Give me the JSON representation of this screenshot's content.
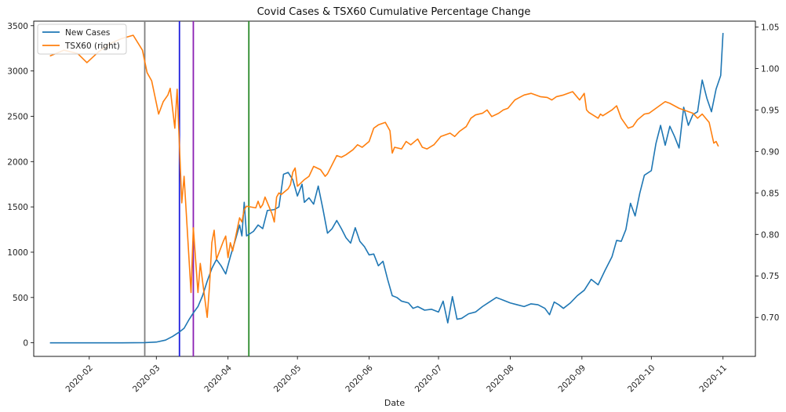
{
  "chart_data": {
    "type": "line",
    "title": "Covid Cases & TSX60 Cumulative Percentage Change",
    "xlabel": "Date",
    "ylabel": "",
    "y2label": "",
    "legend_position": "top-left",
    "grid": false,
    "x_ticks": [
      "2020-02",
      "2020-03",
      "2020-04",
      "2020-05",
      "2020-06",
      "2020-07",
      "2020-08",
      "2020-09",
      "2020-10",
      "2020-11"
    ],
    "x_tick_dates": [
      "2020-02-01",
      "2020-03-01",
      "2020-04-01",
      "2020-05-01",
      "2020-06-01",
      "2020-07-01",
      "2020-08-01",
      "2020-09-01",
      "2020-10-01",
      "2020-11-01"
    ],
    "xlim": [
      "2020-01-08",
      "2020-11-15"
    ],
    "ylim": [
      -150,
      3550
    ],
    "y_ticks": [
      "0",
      "500",
      "1000",
      "1500",
      "2000",
      "2500",
      "3000",
      "3500"
    ],
    "y_tick_values": [
      0,
      500,
      1000,
      1500,
      2000,
      2500,
      3000,
      3500
    ],
    "y2lim": [
      0.653,
      1.057
    ],
    "y2_ticks": [
      "0.70",
      "0.75",
      "0.80",
      "0.85",
      "0.90",
      "0.95",
      "1.00",
      "1.05"
    ],
    "y2_tick_values": [
      0.7,
      0.75,
      0.8,
      0.85,
      0.9,
      0.95,
      1.0,
      1.05
    ],
    "vlines": [
      {
        "date": "2020-02-25",
        "color": "#808080"
      },
      {
        "date": "2020-03-11",
        "color": "#1f1fdd"
      },
      {
        "date": "2020-03-17",
        "color": "#8b1fb4"
      },
      {
        "date": "2020-04-10",
        "color": "#2a8a2a"
      }
    ],
    "series": [
      {
        "name": "New Cases",
        "axis": "left",
        "color": "#1f77b4",
        "points": [
          [
            "2020-01-15",
            0
          ],
          [
            "2020-02-01",
            0
          ],
          [
            "2020-02-15",
            0
          ],
          [
            "2020-02-25",
            2
          ],
          [
            "2020-03-01",
            8
          ],
          [
            "2020-03-05",
            30
          ],
          [
            "2020-03-08",
            70
          ],
          [
            "2020-03-11",
            120
          ],
          [
            "2020-03-13",
            160
          ],
          [
            "2020-03-15",
            250
          ],
          [
            "2020-03-17",
            330
          ],
          [
            "2020-03-19",
            400
          ],
          [
            "2020-03-21",
            520
          ],
          [
            "2020-03-23",
            680
          ],
          [
            "2020-03-25",
            820
          ],
          [
            "2020-03-27",
            920
          ],
          [
            "2020-03-29",
            850
          ],
          [
            "2020-03-31",
            760
          ],
          [
            "2020-04-02",
            950
          ],
          [
            "2020-04-04",
            1120
          ],
          [
            "2020-04-06",
            1300
          ],
          [
            "2020-04-07",
            1180
          ],
          [
            "2020-04-08",
            1550
          ],
          [
            "2020-04-09",
            1180
          ],
          [
            "2020-04-12",
            1230
          ],
          [
            "2020-04-14",
            1300
          ],
          [
            "2020-04-16",
            1260
          ],
          [
            "2020-04-18",
            1460
          ],
          [
            "2020-04-21",
            1470
          ],
          [
            "2020-04-23",
            1500
          ],
          [
            "2020-04-25",
            1860
          ],
          [
            "2020-04-27",
            1880
          ],
          [
            "2020-04-29",
            1800
          ],
          [
            "2020-05-01",
            1620
          ],
          [
            "2020-05-03",
            1750
          ],
          [
            "2020-05-04",
            1550
          ],
          [
            "2020-05-06",
            1600
          ],
          [
            "2020-05-08",
            1530
          ],
          [
            "2020-05-10",
            1730
          ],
          [
            "2020-05-12",
            1480
          ],
          [
            "2020-05-14",
            1210
          ],
          [
            "2020-05-16",
            1260
          ],
          [
            "2020-05-18",
            1350
          ],
          [
            "2020-05-20",
            1260
          ],
          [
            "2020-05-22",
            1160
          ],
          [
            "2020-05-24",
            1100
          ],
          [
            "2020-05-26",
            1270
          ],
          [
            "2020-05-28",
            1120
          ],
          [
            "2020-05-30",
            1060
          ],
          [
            "2020-06-01",
            970
          ],
          [
            "2020-06-03",
            980
          ],
          [
            "2020-06-05",
            850
          ],
          [
            "2020-06-07",
            900
          ],
          [
            "2020-06-09",
            700
          ],
          [
            "2020-06-11",
            520
          ],
          [
            "2020-06-13",
            500
          ],
          [
            "2020-06-15",
            460
          ],
          [
            "2020-06-18",
            440
          ],
          [
            "2020-06-20",
            380
          ],
          [
            "2020-06-22",
            400
          ],
          [
            "2020-06-25",
            360
          ],
          [
            "2020-06-28",
            370
          ],
          [
            "2020-07-01",
            340
          ],
          [
            "2020-07-03",
            460
          ],
          [
            "2020-07-05",
            220
          ],
          [
            "2020-07-07",
            510
          ],
          [
            "2020-07-09",
            260
          ],
          [
            "2020-07-11",
            270
          ],
          [
            "2020-07-14",
            320
          ],
          [
            "2020-07-17",
            340
          ],
          [
            "2020-07-20",
            400
          ],
          [
            "2020-07-23",
            450
          ],
          [
            "2020-07-26",
            500
          ],
          [
            "2020-07-29",
            470
          ],
          [
            "2020-08-01",
            440
          ],
          [
            "2020-08-04",
            420
          ],
          [
            "2020-08-07",
            400
          ],
          [
            "2020-08-10",
            430
          ],
          [
            "2020-08-13",
            420
          ],
          [
            "2020-08-16",
            380
          ],
          [
            "2020-08-18",
            310
          ],
          [
            "2020-08-20",
            450
          ],
          [
            "2020-08-22",
            420
          ],
          [
            "2020-08-24",
            380
          ],
          [
            "2020-08-27",
            440
          ],
          [
            "2020-08-30",
            520
          ],
          [
            "2020-09-02",
            580
          ],
          [
            "2020-09-05",
            700
          ],
          [
            "2020-09-08",
            640
          ],
          [
            "2020-09-11",
            800
          ],
          [
            "2020-09-14",
            950
          ],
          [
            "2020-09-16",
            1130
          ],
          [
            "2020-09-18",
            1120
          ],
          [
            "2020-09-20",
            1250
          ],
          [
            "2020-09-22",
            1540
          ],
          [
            "2020-09-24",
            1400
          ],
          [
            "2020-09-26",
            1650
          ],
          [
            "2020-09-28",
            1850
          ],
          [
            "2020-10-01",
            1900
          ],
          [
            "2020-10-03",
            2200
          ],
          [
            "2020-10-05",
            2400
          ],
          [
            "2020-10-07",
            2180
          ],
          [
            "2020-10-09",
            2390
          ],
          [
            "2020-10-11",
            2280
          ],
          [
            "2020-10-13",
            2150
          ],
          [
            "2020-10-15",
            2600
          ],
          [
            "2020-10-17",
            2400
          ],
          [
            "2020-10-19",
            2520
          ],
          [
            "2020-10-21",
            2550
          ],
          [
            "2020-10-23",
            2900
          ],
          [
            "2020-10-25",
            2700
          ],
          [
            "2020-10-27",
            2550
          ],
          [
            "2020-10-29",
            2800
          ],
          [
            "2020-10-31",
            2950
          ],
          [
            "2020-11-01",
            3420
          ]
        ]
      },
      {
        "name": "TSX60 (right)",
        "axis": "right",
        "color": "#ff7f0e",
        "points": [
          [
            "2020-01-15",
            1.015
          ],
          [
            "2020-01-21",
            1.022
          ],
          [
            "2020-01-27",
            1.018
          ],
          [
            "2020-01-31",
            1.007
          ],
          [
            "2020-02-05",
            1.02
          ],
          [
            "2020-02-10",
            1.03
          ],
          [
            "2020-02-15",
            1.036
          ],
          [
            "2020-02-20",
            1.04
          ],
          [
            "2020-02-24",
            1.022
          ],
          [
            "2020-02-26",
            0.995
          ],
          [
            "2020-02-28",
            0.985
          ],
          [
            "2020-03-02",
            0.945
          ],
          [
            "2020-03-04",
            0.96
          ],
          [
            "2020-03-06",
            0.968
          ],
          [
            "2020-03-07",
            0.976
          ],
          [
            "2020-03-09",
            0.928
          ],
          [
            "2020-03-10",
            0.975
          ],
          [
            "2020-03-12",
            0.838
          ],
          [
            "2020-03-13",
            0.87
          ],
          [
            "2020-03-16",
            0.73
          ],
          [
            "2020-03-17",
            0.808
          ],
          [
            "2020-03-19",
            0.73
          ],
          [
            "2020-03-20",
            0.765
          ],
          [
            "2020-03-23",
            0.7
          ],
          [
            "2020-03-24",
            0.738
          ],
          [
            "2020-03-25",
            0.79
          ],
          [
            "2020-03-26",
            0.805
          ],
          [
            "2020-03-27",
            0.77
          ],
          [
            "2020-03-30",
            0.792
          ],
          [
            "2020-03-31",
            0.798
          ],
          [
            "2020-04-01",
            0.772
          ],
          [
            "2020-04-02",
            0.79
          ],
          [
            "2020-04-03",
            0.78
          ],
          [
            "2020-04-06",
            0.82
          ],
          [
            "2020-04-07",
            0.815
          ],
          [
            "2020-04-08",
            0.83
          ],
          [
            "2020-04-09",
            0.834
          ],
          [
            "2020-04-13",
            0.832
          ],
          [
            "2020-04-14",
            0.84
          ],
          [
            "2020-04-15",
            0.832
          ],
          [
            "2020-04-16",
            0.836
          ],
          [
            "2020-04-17",
            0.845
          ],
          [
            "2020-04-20",
            0.825
          ],
          [
            "2020-04-21",
            0.815
          ],
          [
            "2020-04-22",
            0.845
          ],
          [
            "2020-04-23",
            0.85
          ],
          [
            "2020-04-24",
            0.848
          ],
          [
            "2020-04-27",
            0.855
          ],
          [
            "2020-04-28",
            0.86
          ],
          [
            "2020-04-29",
            0.875
          ],
          [
            "2020-04-30",
            0.88
          ],
          [
            "2020-05-01",
            0.858
          ],
          [
            "2020-05-04",
            0.866
          ],
          [
            "2020-05-06",
            0.87
          ],
          [
            "2020-05-08",
            0.882
          ],
          [
            "2020-05-11",
            0.878
          ],
          [
            "2020-05-13",
            0.87
          ],
          [
            "2020-05-14",
            0.873
          ],
          [
            "2020-05-18",
            0.895
          ],
          [
            "2020-05-20",
            0.893
          ],
          [
            "2020-05-22",
            0.896
          ],
          [
            "2020-05-25",
            0.902
          ],
          [
            "2020-05-27",
            0.908
          ],
          [
            "2020-05-29",
            0.905
          ],
          [
            "2020-06-01",
            0.912
          ],
          [
            "2020-06-03",
            0.928
          ],
          [
            "2020-06-05",
            0.932
          ],
          [
            "2020-06-08",
            0.935
          ],
          [
            "2020-06-10",
            0.925
          ],
          [
            "2020-06-11",
            0.898
          ],
          [
            "2020-06-12",
            0.905
          ],
          [
            "2020-06-15",
            0.903
          ],
          [
            "2020-06-17",
            0.912
          ],
          [
            "2020-06-19",
            0.908
          ],
          [
            "2020-06-22",
            0.915
          ],
          [
            "2020-06-24",
            0.905
          ],
          [
            "2020-06-26",
            0.903
          ],
          [
            "2020-06-29",
            0.908
          ],
          [
            "2020-07-02",
            0.918
          ],
          [
            "2020-07-06",
            0.922
          ],
          [
            "2020-07-08",
            0.918
          ],
          [
            "2020-07-10",
            0.924
          ],
          [
            "2020-07-13",
            0.93
          ],
          [
            "2020-07-15",
            0.94
          ],
          [
            "2020-07-17",
            0.944
          ],
          [
            "2020-07-20",
            0.946
          ],
          [
            "2020-07-22",
            0.95
          ],
          [
            "2020-07-24",
            0.942
          ],
          [
            "2020-07-27",
            0.946
          ],
          [
            "2020-07-29",
            0.95
          ],
          [
            "2020-07-31",
            0.952
          ],
          [
            "2020-08-03",
            0.962
          ],
          [
            "2020-08-05",
            0.965
          ],
          [
            "2020-08-07",
            0.968
          ],
          [
            "2020-08-10",
            0.97
          ],
          [
            "2020-08-12",
            0.968
          ],
          [
            "2020-08-14",
            0.966
          ],
          [
            "2020-08-17",
            0.965
          ],
          [
            "2020-08-19",
            0.962
          ],
          [
            "2020-08-21",
            0.966
          ],
          [
            "2020-08-24",
            0.968
          ],
          [
            "2020-08-26",
            0.97
          ],
          [
            "2020-08-28",
            0.972
          ],
          [
            "2020-08-31",
            0.962
          ],
          [
            "2020-09-02",
            0.97
          ],
          [
            "2020-09-03",
            0.95
          ],
          [
            "2020-09-04",
            0.947
          ],
          [
            "2020-09-08",
            0.94
          ],
          [
            "2020-09-09",
            0.945
          ],
          [
            "2020-09-10",
            0.943
          ],
          [
            "2020-09-14",
            0.95
          ],
          [
            "2020-09-16",
            0.955
          ],
          [
            "2020-09-18",
            0.94
          ],
          [
            "2020-09-21",
            0.928
          ],
          [
            "2020-09-23",
            0.93
          ],
          [
            "2020-09-25",
            0.938
          ],
          [
            "2020-09-28",
            0.945
          ],
          [
            "2020-09-30",
            0.946
          ],
          [
            "2020-10-02",
            0.95
          ],
          [
            "2020-10-05",
            0.956
          ],
          [
            "2020-10-07",
            0.96
          ],
          [
            "2020-10-09",
            0.958
          ],
          [
            "2020-10-13",
            0.952
          ],
          [
            "2020-10-15",
            0.95
          ],
          [
            "2020-10-19",
            0.946
          ],
          [
            "2020-10-21",
            0.94
          ],
          [
            "2020-10-23",
            0.945
          ],
          [
            "2020-10-26",
            0.935
          ],
          [
            "2020-10-28",
            0.91
          ],
          [
            "2020-10-29",
            0.912
          ],
          [
            "2020-10-30",
            0.906
          ]
        ]
      }
    ]
  }
}
